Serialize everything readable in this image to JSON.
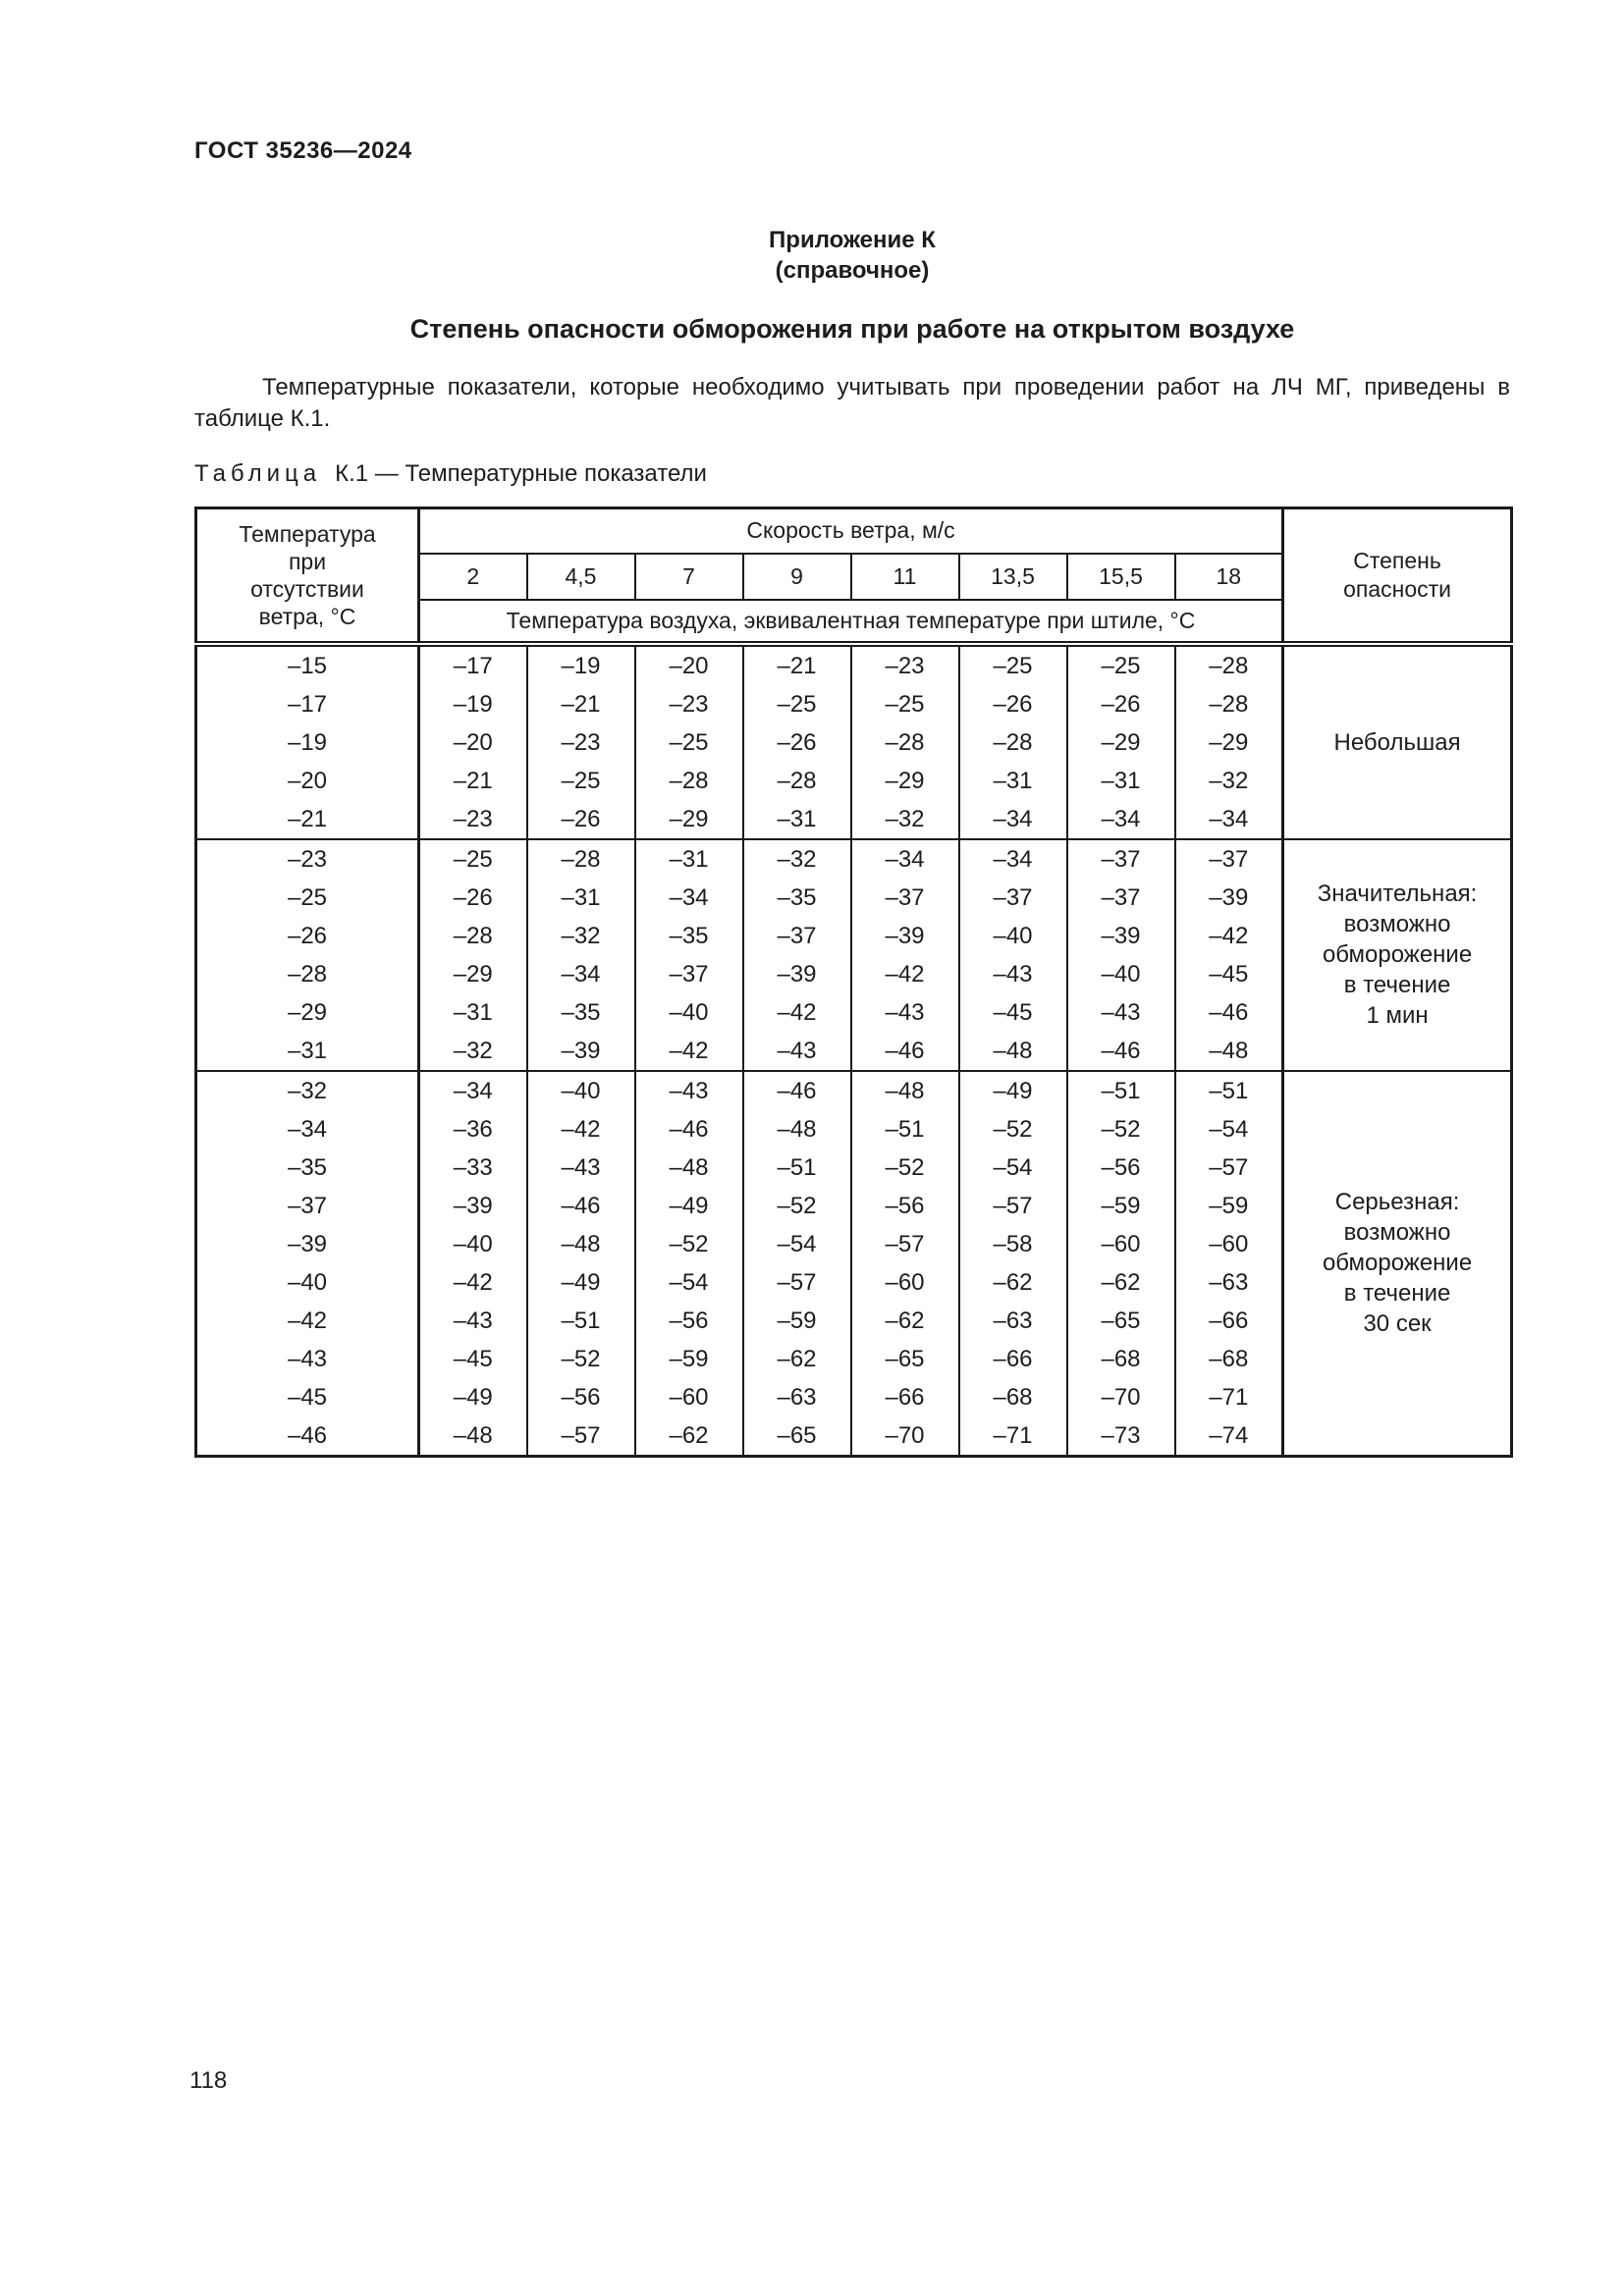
{
  "document": {
    "header": "ГОСТ 35236—2024",
    "page_number": "118"
  },
  "appendix": {
    "label": "Приложение К",
    "kind": "(справочное)",
    "title": "Степень опасности обморожения при работе на открытом воздухе"
  },
  "intro_paragraph": "Температурные показатели, которые необходимо учитывать при проведении работ на ЛЧ МГ, приведены в таблице К.1.",
  "table": {
    "caption_label": "Таблица",
    "caption_rest": "К.1 — Температурные показатели",
    "header": {
      "temp_col": "Температура\nпри\nотсутствии\nветра, °С",
      "wind_group": "Скорость ветра, м/с",
      "wind_speeds": [
        "2",
        "4,5",
        "7",
        "9",
        "11",
        "13,5",
        "15,5",
        "18"
      ],
      "equiv_note": "Температура воздуха, эквивалентная температуре при штиле, °С",
      "danger_col": "Степень\nопасности"
    },
    "blocks": [
      {
        "danger": "Небольшая",
        "rows": [
          [
            "–15",
            "–17",
            "–19",
            "–20",
            "–21",
            "–23",
            "–25",
            "–25",
            "–28"
          ],
          [
            "–17",
            "–19",
            "–21",
            "–23",
            "–25",
            "–25",
            "–26",
            "–26",
            "–28"
          ],
          [
            "–19",
            "–20",
            "–23",
            "–25",
            "–26",
            "–28",
            "–28",
            "–29",
            "–29"
          ],
          [
            "–20",
            "–21",
            "–25",
            "–28",
            "–28",
            "–29",
            "–31",
            "–31",
            "–32"
          ],
          [
            "–21",
            "–23",
            "–26",
            "–29",
            "–31",
            "–32",
            "–34",
            "–34",
            "–34"
          ]
        ]
      },
      {
        "danger": "Значительная:\nвозможно\nобморожение\nв течение\n1 мин",
        "rows": [
          [
            "–23",
            "–25",
            "–28",
            "–31",
            "–32",
            "–34",
            "–34",
            "–37",
            "–37"
          ],
          [
            "–25",
            "–26",
            "–31",
            "–34",
            "–35",
            "–37",
            "–37",
            "–37",
            "–39"
          ],
          [
            "–26",
            "–28",
            "–32",
            "–35",
            "–37",
            "–39",
            "–40",
            "–39",
            "–42"
          ],
          [
            "–28",
            "–29",
            "–34",
            "–37",
            "–39",
            "–42",
            "–43",
            "–40",
            "–45"
          ],
          [
            "–29",
            "–31",
            "–35",
            "–40",
            "–42",
            "–43",
            "–45",
            "–43",
            "–46"
          ],
          [
            "–31",
            "–32",
            "–39",
            "–42",
            "–43",
            "–46",
            "–48",
            "–46",
            "–48"
          ]
        ]
      },
      {
        "danger": "Серьезная:\nвозможно\nобморожение\nв течение\n30 сек",
        "rows": [
          [
            "–32",
            "–34",
            "–40",
            "–43",
            "–46",
            "–48",
            "–49",
            "–51",
            "–51"
          ],
          [
            "–34",
            "–36",
            "–42",
            "–46",
            "–48",
            "–51",
            "–52",
            "–52",
            "–54"
          ],
          [
            "–35",
            "–33",
            "–43",
            "–48",
            "–51",
            "–52",
            "–54",
            "–56",
            "–57"
          ],
          [
            "–37",
            "–39",
            "–46",
            "–49",
            "–52",
            "–56",
            "–57",
            "–59",
            "–59"
          ],
          [
            "–39",
            "–40",
            "–48",
            "–52",
            "–54",
            "–57",
            "–58",
            "–60",
            "–60"
          ],
          [
            "–40",
            "–42",
            "–49",
            "–54",
            "–57",
            "–60",
            "–62",
            "–62",
            "–63"
          ],
          [
            "–42",
            "–43",
            "–51",
            "–56",
            "–59",
            "–62",
            "–63",
            "–65",
            "–66"
          ],
          [
            "–43",
            "–45",
            "–52",
            "–59",
            "–62",
            "–65",
            "–66",
            "–68",
            "–68"
          ],
          [
            "–45",
            "–49",
            "–56",
            "–60",
            "–63",
            "–66",
            "–68",
            "–70",
            "–71"
          ],
          [
            "–46",
            "–48",
            "–57",
            "–62",
            "–65",
            "–70",
            "–71",
            "–73",
            "–74"
          ]
        ]
      }
    ]
  }
}
